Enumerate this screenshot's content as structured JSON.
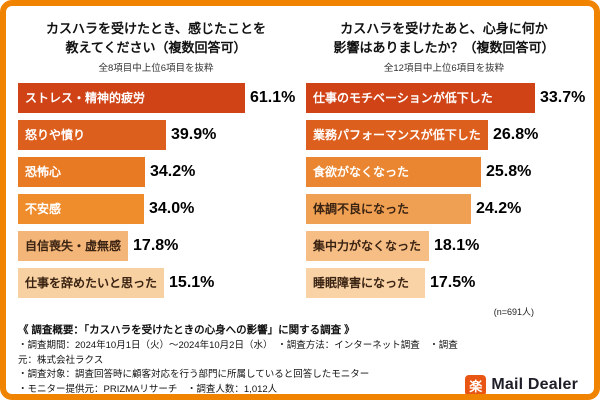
{
  "chart_data": [
    {
      "type": "bar",
      "orientation": "horizontal",
      "title_lines": [
        "カスハラを受けたとき、感じたことを",
        "教えてください（複数回答可）"
      ],
      "subtitle": "全8項目中上位6項目を抜粋",
      "categories": [
        "ストレス・精神的疲労",
        "怒りや憤り",
        "恐怖心",
        "不安感",
        "自信喪失・虚無感",
        "仕事を辞めたいと思った"
      ],
      "values": [
        61.1,
        39.9,
        34.2,
        34.0,
        17.8,
        15.1
      ],
      "value_labels": [
        "61.1%",
        "39.9%",
        "34.2%",
        "34.0%",
        "17.8%",
        "15.1%"
      ],
      "xlim": [
        0,
        64
      ],
      "bar_colors": [
        "#cf4317",
        "#dd5f1e",
        "#e87a24",
        "#ef8c2b",
        "#f4b678",
        "#f8d1a2"
      ],
      "label_text_colors": [
        "#ffffff",
        "#ffffff",
        "#ffffff",
        "#ffffff",
        "#3a2312",
        "#3a2312"
      ],
      "legend": "none",
      "grid": false
    },
    {
      "type": "bar",
      "orientation": "horizontal",
      "title_lines": [
        "カスハラを受けたあと、心身に何か",
        "影響はありましたか？（複数回答可）"
      ],
      "subtitle": "全12項目中上位6項目を抜粋",
      "categories": [
        "仕事のモチベーションが低下した",
        "業務パフォーマンスが低下した",
        "食欲がなくなった",
        "体調不良になった",
        "集中力がなくなった",
        "睡眠障害になった"
      ],
      "values": [
        33.7,
        26.8,
        25.8,
        24.2,
        18.1,
        17.5
      ],
      "value_labels": [
        "33.7%",
        "26.8%",
        "25.8%",
        "24.2%",
        "18.1%",
        "17.5%"
      ],
      "xlim": [
        0,
        35
      ],
      "bar_colors": [
        "#cf4317",
        "#dd5f1e",
        "#ea8631",
        "#f0a053",
        "#f6bd85",
        "#f9d2a6"
      ],
      "label_text_colors": [
        "#ffffff",
        "#ffffff",
        "#ffffff",
        "#3a2312",
        "#3a2312",
        "#3a2312"
      ],
      "legend": "none",
      "grid": false
    }
  ],
  "note": "(n=691人)",
  "survey": {
    "heading": "《 調査概要：「カスハラを受けたときの心身への影響」に関する調査 》",
    "lines": [
      "・調査期間：2024年10月1日（火）～2024年10月2日（水）　・調査方法：インターネット調査　・調査元：株式会社ラクス",
      "・調査対象：調査回答時に顧客対応を行う部門に所属していると回答したモニター",
      "・モニター提供元：PRIZMAリサーチ　・調査人数：1,012人"
    ]
  },
  "logo": {
    "mark": "楽",
    "text": "Mail Dealer"
  },
  "colors": {
    "frame_border": "#f08300",
    "logo_orange": "#e95513"
  }
}
